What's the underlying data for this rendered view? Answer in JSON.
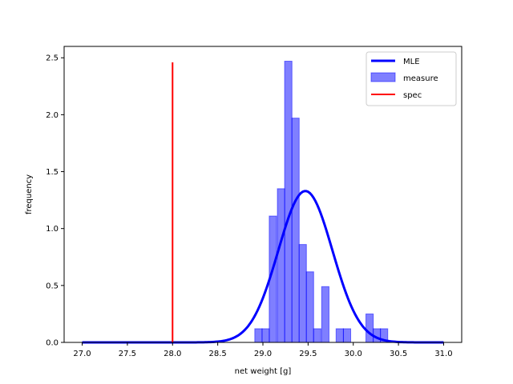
{
  "chart_data": {
    "type": "histogram",
    "title": "",
    "xlabel": "net weight [g]",
    "ylabel": "frequency",
    "xlim": [
      26.8,
      31.2
    ],
    "ylim": [
      0,
      2.6
    ],
    "xticks": [
      27.0,
      27.5,
      28.0,
      28.5,
      29.0,
      29.5,
      30.0,
      30.5,
      31.0
    ],
    "xtick_labels": [
      "27.0",
      "27.5",
      "28.0",
      "28.5",
      "29.0",
      "29.5",
      "30.0",
      "30.5",
      "31.0"
    ],
    "yticks": [
      0.0,
      0.5,
      1.0,
      1.5,
      2.0,
      2.5
    ],
    "ytick_labels": [
      "0.0",
      "0.5",
      "1.0",
      "1.5",
      "2.0",
      "2.5"
    ],
    "grid": false,
    "legend_position": "top-right",
    "histogram": {
      "name": "measure",
      "color": "#0000ff",
      "bin_width": 0.0815,
      "bins": [
        {
          "left": 28.91,
          "value": 0.12
        },
        {
          "left": 28.99,
          "value": 0.12
        },
        {
          "left": 29.07,
          "value": 1.11
        },
        {
          "left": 29.16,
          "value": 1.35
        },
        {
          "left": 29.24,
          "value": 2.47
        },
        {
          "left": 29.32,
          "value": 1.97
        },
        {
          "left": 29.4,
          "value": 0.86
        },
        {
          "left": 29.48,
          "value": 0.62
        },
        {
          "left": 29.56,
          "value": 0.12
        },
        {
          "left": 29.65,
          "value": 0.49
        },
        {
          "left": 29.73,
          "value": 0.0
        },
        {
          "left": 29.81,
          "value": 0.12
        },
        {
          "left": 29.89,
          "value": 0.12
        },
        {
          "left": 29.97,
          "value": 0.0
        },
        {
          "left": 30.05,
          "value": 0.0
        },
        {
          "left": 30.14,
          "value": 0.25
        },
        {
          "left": 30.22,
          "value": 0.12
        },
        {
          "left": 30.3,
          "value": 0.12
        }
      ]
    },
    "series": [
      {
        "name": "MLE",
        "type": "line",
        "color": "#0000ff",
        "distribution": "normal",
        "mean": 29.47,
        "std": 0.3,
        "x_range": [
          27.0,
          31.0
        ]
      },
      {
        "name": "spec",
        "type": "vline",
        "color": "#ff0000",
        "x": 28.0,
        "y_range": [
          0.0,
          2.46
        ]
      }
    ],
    "legend": [
      "MLE",
      "measure",
      "spec"
    ]
  }
}
